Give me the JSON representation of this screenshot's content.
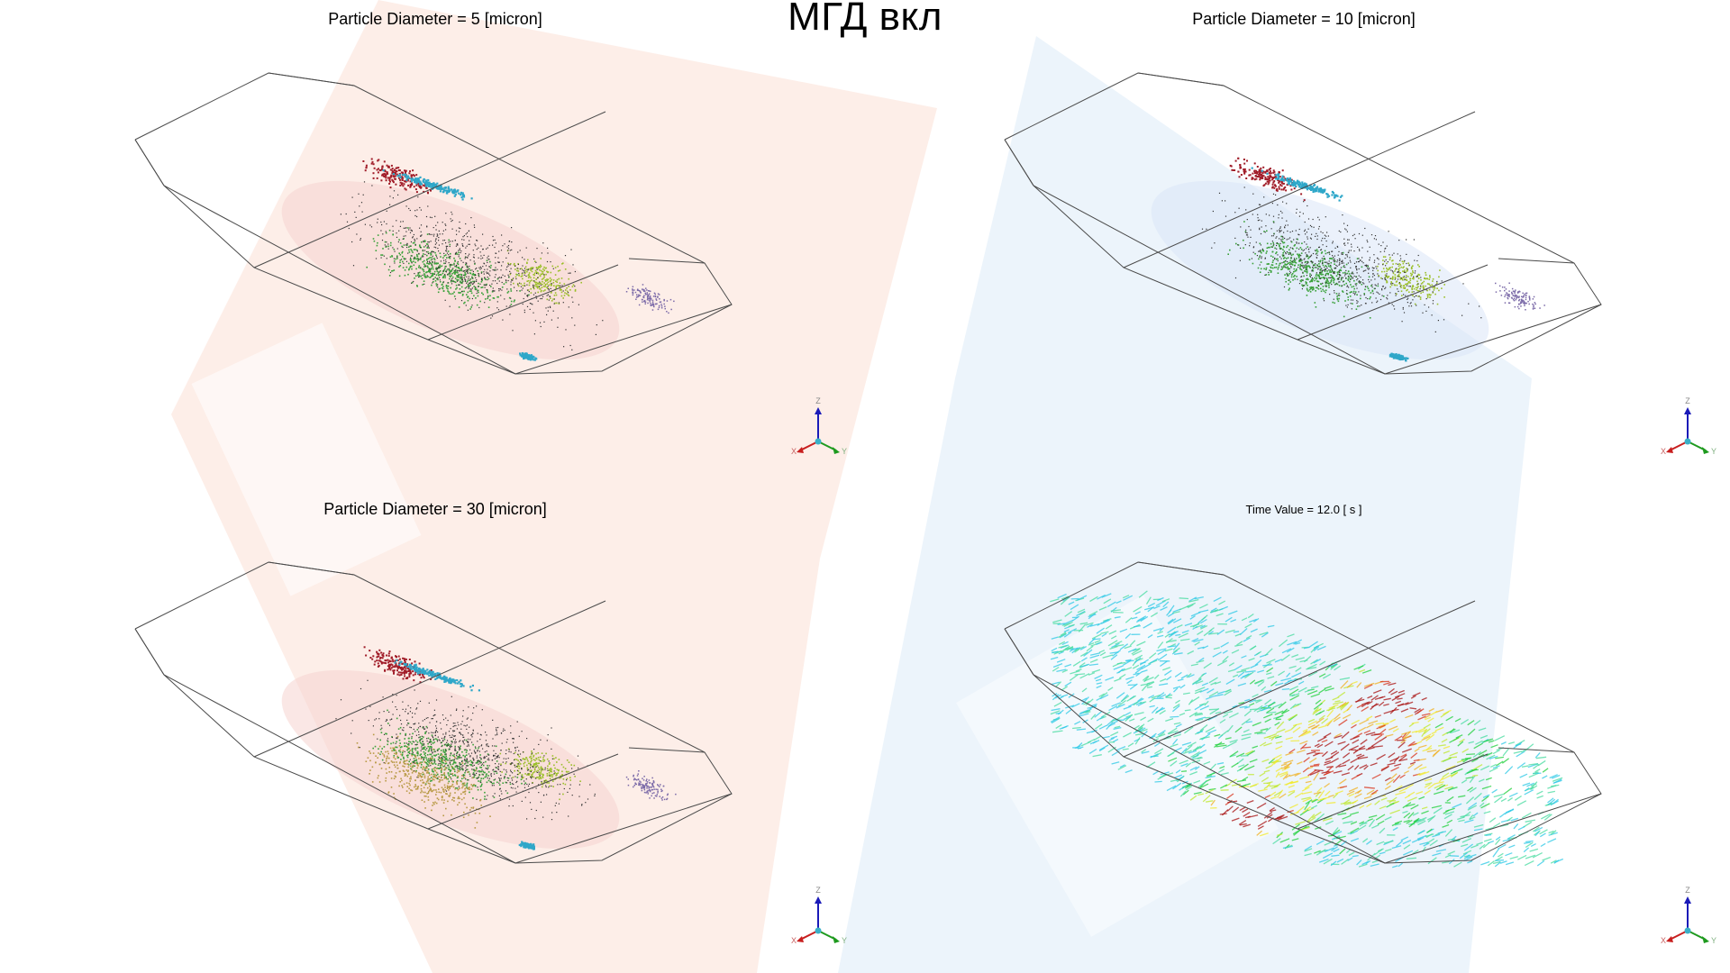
{
  "main_title": "МГД вкл",
  "panels": [
    {
      "title": "Particle Diameter = 5 [micron]"
    },
    {
      "title": "Particle Diameter = 10 [micron]"
    },
    {
      "title": "Particle Diameter = 30 [micron]"
    },
    {
      "title": "Time Value = 12.0 [ s ]"
    }
  ],
  "axis_labels": {
    "z": "Z",
    "x": "X",
    "y": "Y"
  },
  "colors": {
    "background": "#ffffff",
    "watermark_red": "#fde7df",
    "watermark_blue": "#e6f1fb",
    "outline": "#4a4a4a",
    "particle_red": "#a01c28",
    "particle_cyan": "#2fa7c9",
    "particle_green": "#3aa13a",
    "particle_dark": "#333333",
    "axis_z": "#1a1ab8",
    "axis_x": "#c81e1e",
    "axis_y": "#1e9a1e"
  }
}
